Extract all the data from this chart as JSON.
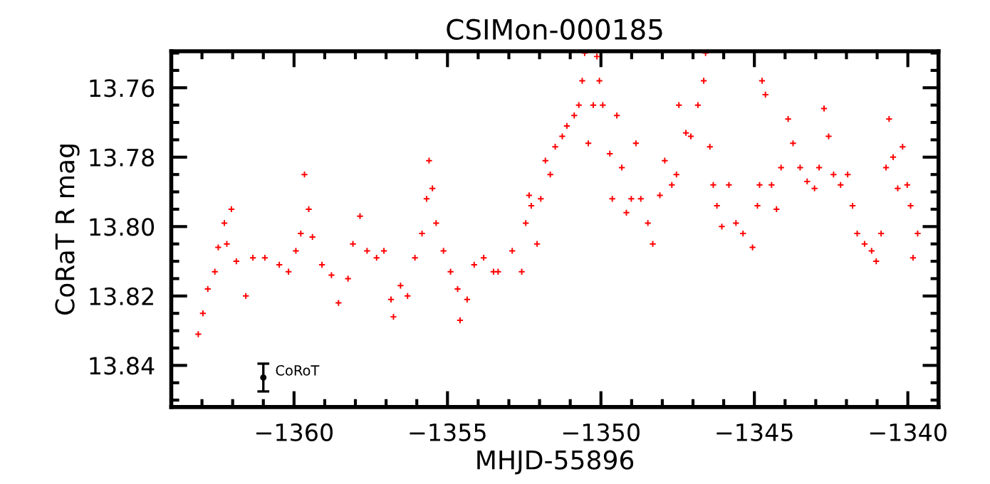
{
  "chart_data": {
    "type": "scatter",
    "title": "CSIMon-000185",
    "xlabel": "MHJD-55896",
    "ylabel": "CoRaT R mag",
    "xlim": [
      -1364,
      -1339
    ],
    "xticks": [
      -1360,
      -1355,
      -1350,
      -1345,
      -1340
    ],
    "ylim": [
      13.852,
      13.7495
    ],
    "yticks": [
      {
        "value": 13.76,
        "label": "13.76"
      },
      {
        "value": 13.78,
        "label": "13.78"
      },
      {
        "value": 13.8,
        "label": "13.80"
      },
      {
        "value": 13.82,
        "label": "13.82"
      },
      {
        "value": 13.84,
        "label": "13.84"
      }
    ],
    "grid": false,
    "legend": false,
    "marker": "cross",
    "annotations": [
      "CoRoT"
    ],
    "series": [
      {
        "color": "#ff0000",
        "x": [
          -1363.12,
          -1362.97,
          -1362.81,
          -1362.58,
          -1362.47,
          -1362.27,
          -1362.19,
          -1362.04,
          -1361.88,
          -1361.57,
          -1361.34,
          -1360.95,
          -1360.48,
          -1360.18,
          -1359.94,
          -1359.78,
          -1359.66,
          -1359.52,
          -1359.4,
          -1359.09,
          -1358.78,
          -1358.55,
          -1358.24,
          -1358.08,
          -1357.85,
          -1357.62,
          -1357.31,
          -1357.07,
          -1356.84,
          -1356.76,
          -1356.53,
          -1356.3,
          -1356.06,
          -1355.83,
          -1355.68,
          -1355.6,
          -1355.49,
          -1355.37,
          -1355.13,
          -1354.9,
          -1354.67,
          -1354.59,
          -1354.36,
          -1354.13,
          -1353.82,
          -1353.5,
          -1353.35,
          -1352.89,
          -1352.58,
          -1352.45,
          -1352.34,
          -1352.27,
          -1352.08,
          -1351.96,
          -1351.81,
          -1351.65,
          -1351.49,
          -1351.26,
          -1351.11,
          -1350.87,
          -1350.72,
          -1350.61,
          -1350.53,
          -1350.41,
          -1350.25,
          -1350.13,
          -1350.05,
          -1349.94,
          -1349.71,
          -1349.63,
          -1349.48,
          -1349.32,
          -1349.17,
          -1349.01,
          -1348.86,
          -1348.7,
          -1348.47,
          -1348.31,
          -1348.08,
          -1347.92,
          -1347.69,
          -1347.54,
          -1347.46,
          -1347.23,
          -1347.07,
          -1346.84,
          -1346.65,
          -1346.59,
          -1346.45,
          -1346.34,
          -1346.22,
          -1346.06,
          -1345.83,
          -1345.6,
          -1345.37,
          -1345.06,
          -1344.9,
          -1344.83,
          -1344.75,
          -1344.64,
          -1344.44,
          -1344.28,
          -1344.13,
          -1343.9,
          -1343.74,
          -1343.51,
          -1343.28,
          -1343.04,
          -1342.89,
          -1342.73,
          -1342.58,
          -1342.42,
          -1342.19,
          -1341.96,
          -1341.8,
          -1341.65,
          -1341.41,
          -1341.18,
          -1341.03,
          -1340.87,
          -1340.71,
          -1340.61,
          -1340.48,
          -1340.33,
          -1340.17,
          -1340.02,
          -1339.91,
          -1339.83,
          -1339.68
        ],
        "values": [
          13.831,
          13.825,
          13.818,
          13.813,
          13.806,
          13.799,
          13.805,
          13.795,
          13.81,
          13.82,
          13.809,
          13.809,
          13.811,
          13.813,
          13.807,
          13.802,
          13.785,
          13.795,
          13.803,
          13.811,
          13.814,
          13.822,
          13.815,
          13.805,
          13.797,
          13.807,
          13.809,
          13.807,
          13.821,
          13.826,
          13.817,
          13.82,
          13.809,
          13.802,
          13.792,
          13.781,
          13.789,
          13.799,
          13.807,
          13.813,
          13.818,
          13.827,
          13.821,
          13.811,
          13.809,
          13.813,
          13.813,
          13.807,
          13.813,
          13.799,
          13.791,
          13.794,
          13.805,
          13.792,
          13.781,
          13.785,
          13.777,
          13.774,
          13.771,
          13.768,
          13.765,
          13.758,
          13.75,
          13.776,
          13.765,
          13.751,
          13.758,
          13.765,
          13.779,
          13.792,
          13.768,
          13.783,
          13.796,
          13.792,
          13.776,
          13.792,
          13.799,
          13.805,
          13.791,
          13.781,
          13.788,
          13.785,
          13.765,
          13.773,
          13.774,
          13.765,
          13.758,
          13.75,
          13.777,
          13.788,
          13.794,
          13.8,
          13.788,
          13.799,
          13.802,
          13.806,
          13.794,
          13.788,
          13.758,
          13.762,
          13.788,
          13.795,
          13.783,
          13.769,
          13.776,
          13.783,
          13.787,
          13.789,
          13.783,
          13.766,
          13.774,
          13.785,
          13.788,
          13.785,
          13.794,
          13.802,
          13.805,
          13.807,
          13.81,
          13.802,
          13.783,
          13.769,
          13.78,
          13.789,
          13.777,
          13.788,
          13.794,
          13.809,
          13.802
        ]
      },
      {
        "color": "#000000",
        "marker": "circle",
        "x": [
          -1361.0
        ],
        "values": [
          13.8435
        ],
        "errors": [
          0.004
        ]
      }
    ]
  }
}
